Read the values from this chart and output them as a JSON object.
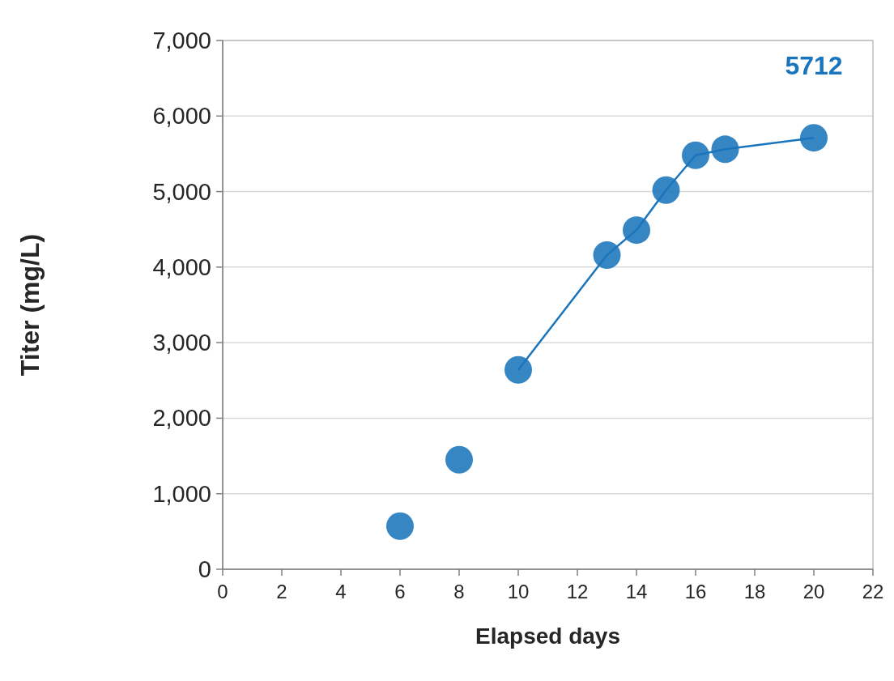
{
  "chart_data": {
    "type": "line",
    "xlabel": "Elapsed days",
    "ylabel": "Titer (mg/L)",
    "xlim": [
      0,
      22
    ],
    "xticks": [
      0,
      2,
      4,
      6,
      8,
      10,
      12,
      14,
      16,
      18,
      20,
      22
    ],
    "ylim": [
      0,
      7000
    ],
    "yticks": [
      {
        "value": 0,
        "label": "0"
      },
      {
        "value": 1000,
        "label": "1,000"
      },
      {
        "value": 2000,
        "label": "2,000"
      },
      {
        "value": 3000,
        "label": "3,000"
      },
      {
        "value": 4000,
        "label": "4,000"
      },
      {
        "value": 5000,
        "label": "5,000"
      },
      {
        "value": 6000,
        "label": "6,000"
      },
      {
        "value": 7000,
        "label": "7,000"
      }
    ],
    "grid": "y",
    "marker": "circle",
    "line_style": "solid",
    "series": [
      {
        "type": "scatter",
        "color": "#1a75bc",
        "x": [
          6,
          8
        ],
        "values": [
          570,
          1450
        ]
      },
      {
        "color": "#1a75bc",
        "x": [
          10,
          13,
          14,
          15,
          16,
          17,
          20
        ],
        "values": [
          2640,
          4160,
          4490,
          5020,
          5480,
          5560,
          5712
        ]
      }
    ],
    "annotations": [
      {
        "text": "5712",
        "x": 20,
        "y": 5712
      }
    ]
  }
}
